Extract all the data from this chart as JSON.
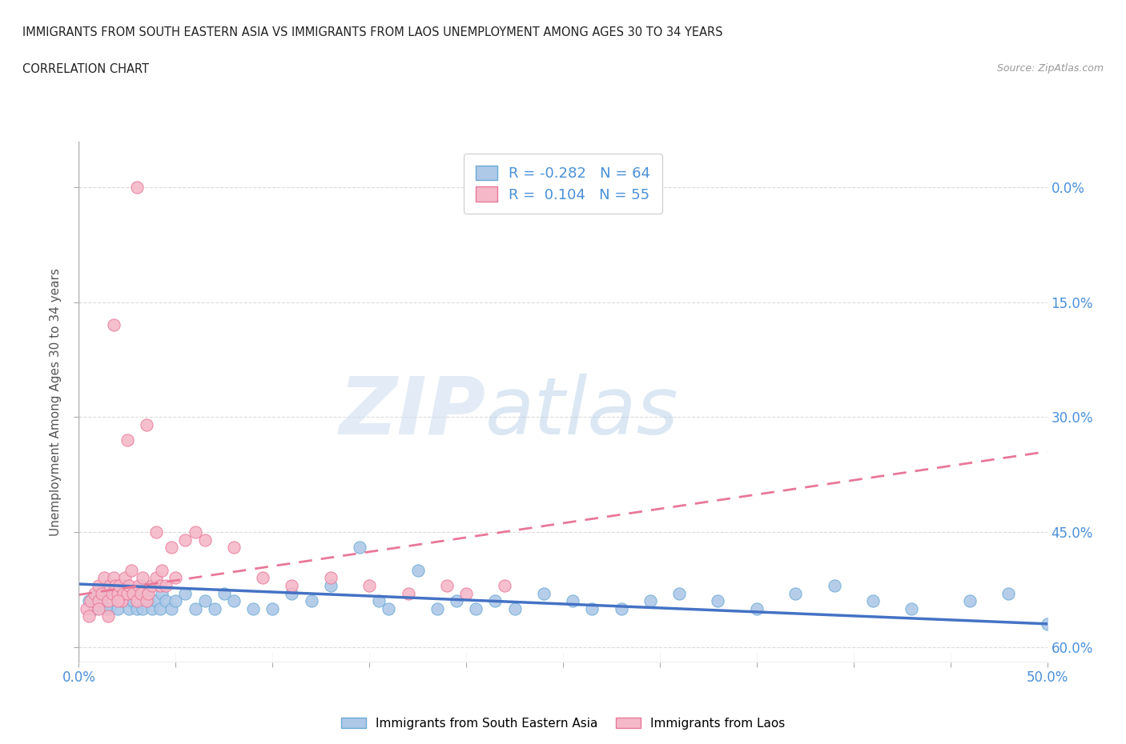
{
  "title_line1": "IMMIGRANTS FROM SOUTH EASTERN ASIA VS IMMIGRANTS FROM LAOS UNEMPLOYMENT AMONG AGES 30 TO 34 YEARS",
  "title_line2": "CORRELATION CHART",
  "source_text": "Source: ZipAtlas.com",
  "ylabel": "Unemployment Among Ages 30 to 34 years",
  "xlim": [
    0.0,
    0.5
  ],
  "ylim": [
    -0.02,
    0.66
  ],
  "xticks": [
    0.0,
    0.05,
    0.1,
    0.15,
    0.2,
    0.25,
    0.3,
    0.35,
    0.4,
    0.45,
    0.5
  ],
  "xticklabels_show": [
    "0.0%",
    "",
    "",
    "",
    "",
    "",
    "",
    "",
    "",
    "",
    "50.0%"
  ],
  "yticks": [
    0.0,
    0.15,
    0.3,
    0.45,
    0.6
  ],
  "right_ytick_labels": [
    "60.0%",
    "45.0%",
    "30.0%",
    "15.0%",
    "0.0%"
  ],
  "blue_color": "#aec8e8",
  "pink_color": "#f5b8c8",
  "blue_edge_color": "#6aaad4",
  "pink_edge_color": "#e87898",
  "blue_line_color": "#4472c4",
  "pink_line_color": "#e87898",
  "R_blue": -0.282,
  "N_blue": 64,
  "R_pink": 0.104,
  "N_pink": 55,
  "watermark_zip": "ZIP",
  "watermark_atlas": "atlas",
  "blue_trend_x0": 0.0,
  "blue_trend_y0": 0.082,
  "blue_trend_x1": 0.5,
  "blue_trend_y1": 0.03,
  "pink_trend_x0": 0.0,
  "pink_trend_y0": 0.068,
  "pink_trend_x1": 0.5,
  "pink_trend_y1": 0.255,
  "grid_color": "#cccccc",
  "background_color": "#ffffff",
  "title_color": "#222222",
  "axis_label_color": "#555555",
  "tick_color": "#4a90d9",
  "legend_label1": "Immigrants from South Eastern Asia",
  "legend_label2": "Immigrants from Laos",
  "blue_scatter_x": [
    0.005,
    0.008,
    0.01,
    0.012,
    0.014,
    0.015,
    0.016,
    0.018,
    0.02,
    0.02,
    0.022,
    0.023,
    0.025,
    0.026,
    0.027,
    0.028,
    0.03,
    0.031,
    0.032,
    0.033,
    0.035,
    0.036,
    0.038,
    0.04,
    0.042,
    0.043,
    0.045,
    0.048,
    0.05,
    0.055,
    0.06,
    0.065,
    0.07,
    0.075,
    0.08,
    0.09,
    0.1,
    0.11,
    0.12,
    0.13,
    0.145,
    0.155,
    0.16,
    0.175,
    0.185,
    0.195,
    0.205,
    0.215,
    0.225,
    0.24,
    0.255,
    0.265,
    0.28,
    0.295,
    0.31,
    0.33,
    0.35,
    0.37,
    0.39,
    0.41,
    0.43,
    0.46,
    0.48,
    0.5
  ],
  "blue_scatter_y": [
    0.06,
    0.05,
    0.07,
    0.06,
    0.05,
    0.08,
    0.05,
    0.07,
    0.06,
    0.05,
    0.07,
    0.08,
    0.06,
    0.05,
    0.07,
    0.06,
    0.05,
    0.06,
    0.08,
    0.05,
    0.07,
    0.06,
    0.05,
    0.06,
    0.05,
    0.07,
    0.06,
    0.05,
    0.06,
    0.07,
    0.05,
    0.06,
    0.05,
    0.07,
    0.06,
    0.05,
    0.05,
    0.07,
    0.06,
    0.08,
    0.13,
    0.06,
    0.05,
    0.1,
    0.05,
    0.06,
    0.05,
    0.06,
    0.05,
    0.07,
    0.06,
    0.05,
    0.05,
    0.06,
    0.07,
    0.06,
    0.05,
    0.07,
    0.08,
    0.06,
    0.05,
    0.06,
    0.07,
    0.03
  ],
  "pink_scatter_x": [
    0.004,
    0.006,
    0.008,
    0.01,
    0.01,
    0.012,
    0.013,
    0.015,
    0.016,
    0.017,
    0.018,
    0.019,
    0.02,
    0.021,
    0.022,
    0.023,
    0.024,
    0.025,
    0.026,
    0.027,
    0.028,
    0.03,
    0.031,
    0.032,
    0.033,
    0.035,
    0.036,
    0.038,
    0.04,
    0.042,
    0.043,
    0.045,
    0.048,
    0.05,
    0.055,
    0.06,
    0.018,
    0.025,
    0.03,
    0.035,
    0.04,
    0.065,
    0.08,
    0.095,
    0.11,
    0.13,
    0.15,
    0.17,
    0.19,
    0.2,
    0.22,
    0.01,
    0.02,
    0.005,
    0.015
  ],
  "pink_scatter_y": [
    0.05,
    0.06,
    0.07,
    0.06,
    0.08,
    0.07,
    0.09,
    0.06,
    0.08,
    0.07,
    0.09,
    0.08,
    0.07,
    0.08,
    0.06,
    0.07,
    0.09,
    0.07,
    0.08,
    0.1,
    0.07,
    0.06,
    0.08,
    0.07,
    0.09,
    0.06,
    0.07,
    0.08,
    0.09,
    0.08,
    0.1,
    0.08,
    0.13,
    0.09,
    0.14,
    0.15,
    0.42,
    0.27,
    0.6,
    0.29,
    0.15,
    0.14,
    0.13,
    0.09,
    0.08,
    0.09,
    0.08,
    0.07,
    0.08,
    0.07,
    0.08,
    0.05,
    0.06,
    0.04,
    0.04
  ]
}
